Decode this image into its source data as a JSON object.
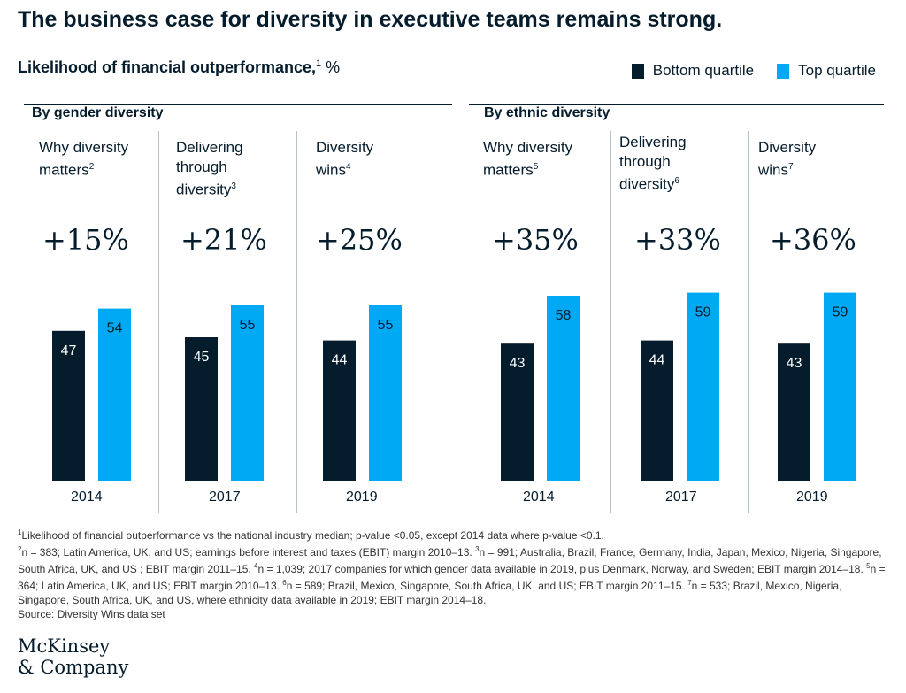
{
  "title": "The business case for diversity in executive teams remains strong.",
  "subtitle": "Likelihood of financial outperformance,",
  "subtitle_sup": "1",
  "subtitle_unit": " %",
  "legend": {
    "bottom": "Bottom quartile",
    "top": "Top quartile"
  },
  "colors": {
    "bottom": "#051c2c",
    "top": "#00a9f4"
  },
  "groups": {
    "gender": "By gender diversity",
    "ethnic": "By ethnic diversity"
  },
  "panels": [
    {
      "l1": "Why diversity",
      "l2": "matters",
      "l2sup": "2",
      "l3": "",
      "l3sup": "",
      "pct": "+15%",
      "year": "2014"
    },
    {
      "l1": "Delivering",
      "l2": "through",
      "l2sup": "",
      "l3": "diversity",
      "l3sup": "3",
      "pct": "+21%",
      "year": "2017"
    },
    {
      "l1": "Diversity",
      "l2": "wins",
      "l2sup": "4",
      "l3": "",
      "l3sup": "",
      "pct": "+25%",
      "year": "2019"
    },
    {
      "l1": "Why diversity",
      "l2": "matters",
      "l2sup": "5",
      "l3": "",
      "l3sup": "",
      "pct": "+35%",
      "year": "2014"
    },
    {
      "l1": "Delivering",
      "l2": "through",
      "l2sup": "",
      "l3": "diversity",
      "l3sup": "6",
      "pct": "+33%",
      "year": "2017"
    },
    {
      "l1": "Diversity",
      "l2": "wins",
      "l2sup": "7",
      "l3": "",
      "l3sup": "",
      "pct": "+36%",
      "year": "2019"
    }
  ],
  "chart_data": {
    "type": "bar",
    "ylabel": "%",
    "ylim": [
      0,
      100
    ],
    "categories": [
      "2014",
      "2017",
      "2019",
      "2014",
      "2017",
      "2019"
    ],
    "series": [
      {
        "name": "Bottom quartile",
        "values": [
          47,
          45,
          44,
          43,
          44,
          43
        ]
      },
      {
        "name": "Top quartile",
        "values": [
          54,
          55,
          55,
          58,
          59,
          59
        ]
      }
    ]
  },
  "footnotes": {
    "line1_sup": "1",
    "line1": "Likelihood of financial outperformance vs the national industry median; p-value <0.05, except 2014 data where p-value <0.1.",
    "s2": "2",
    "t2": "n = 383; Latin America, UK, and US; earnings before interest and taxes (EBIT) margin 2010–13. ",
    "s3": "3",
    "t3": "n = 991; Australia, Brazil, France, Germany, India, Japan, Mexico, Nigeria, Singapore, South Africa, UK, and US ; EBIT margin 2011–15. ",
    "s4": "4",
    "t4": "n = 1,039; 2017 companies for which gender data available in 2019, plus Denmark, Norway, and Sweden;  EBIT margin 2014–18. ",
    "s5": "5",
    "t5": "n = 364; Latin America, UK, and US; EBIT margin 2010–13. ",
    "s6": "6",
    "t6": "n = 589; Brazil, Mexico, Singapore, South Africa, UK, and US; EBIT margin 2011–15. ",
    "s7": "7",
    "t7": "n = 533; Brazil, Mexico, Nigeria, Singapore, South Africa, UK, and US, where ethnicity data available in 2019; EBIT margin 2014–18.",
    "source": "Source: Diversity Wins data set"
  },
  "logo": {
    "line1": "McKinsey",
    "line2": "& Company"
  }
}
